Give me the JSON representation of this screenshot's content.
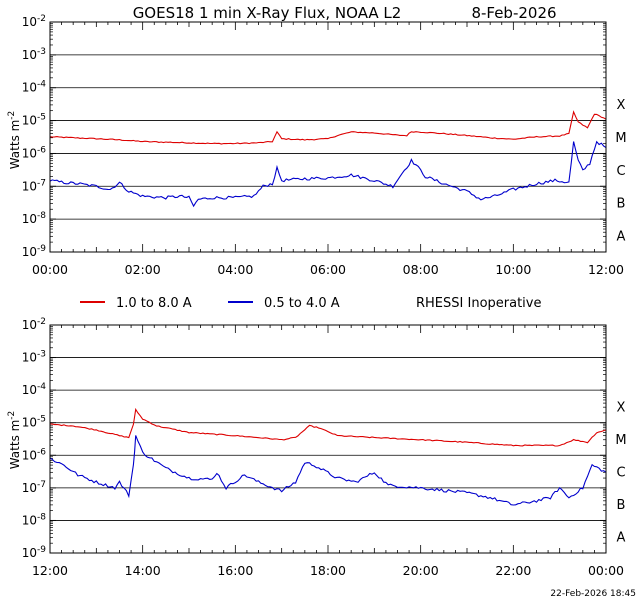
{
  "title": {
    "left": "GOES18 1 min X-Ray Flux, NOAA L2",
    "date": "8-Feb-2026"
  },
  "ylabel": "Watts m",
  "ylabel_exp": "-2",
  "flare_classes": [
    "X",
    "M",
    "C",
    "B",
    "A"
  ],
  "legend": {
    "long": "1.0 to 8.0 A",
    "short": "0.5 to 4.0 A",
    "note": "RHESSI Inoperative"
  },
  "footer": {
    "timestamp": "22-Feb-2026 18:45"
  },
  "colors": {
    "long": "#dd0000",
    "short": "#0000cc",
    "grid": "#000000",
    "background": "#ffffff"
  },
  "chart_data": [
    {
      "type": "line",
      "panel": "top",
      "xlabel": "",
      "ylabel": "Watts m-2",
      "yscale": "log",
      "ylim": [
        1e-09,
        0.01
      ],
      "xlim_hours": [
        0,
        12
      ],
      "x_tick_labels": [
        "00:00",
        "02:00",
        "04:00",
        "06:00",
        "08:00",
        "10:00",
        "12:00"
      ],
      "y_tick_exponents": [
        -9,
        -8,
        -7,
        -6,
        -5,
        -4,
        -3,
        -2
      ],
      "series": [
        {
          "name": "1.0 to 8.0 A",
          "color": "#dd0000",
          "points": [
            [
              0,
              3.2e-06
            ],
            [
              0.5,
              3e-06
            ],
            [
              1,
              2.8e-06
            ],
            [
              1.5,
              2.6e-06
            ],
            [
              2,
              2.3e-06
            ],
            [
              2.5,
              2.2e-06
            ],
            [
              3,
              2.1e-06
            ],
            [
              3.5,
              2e-06
            ],
            [
              4,
              2e-06
            ],
            [
              4.5,
              2.1e-06
            ],
            [
              4.8,
              2.3e-06
            ],
            [
              4.9,
              4.5e-06
            ],
            [
              5.0,
              2.8e-06
            ],
            [
              5.5,
              2.6e-06
            ],
            [
              6,
              2.8e-06
            ],
            [
              6.2,
              3.5e-06
            ],
            [
              6.5,
              4.5e-06
            ],
            [
              7,
              4.2e-06
            ],
            [
              7.5,
              3.6e-06
            ],
            [
              7.7,
              3.5e-06
            ],
            [
              7.8,
              4.6e-06
            ],
            [
              8,
              4.5e-06
            ],
            [
              8.5,
              4e-06
            ],
            [
              9,
              3.5e-06
            ],
            [
              9.5,
              3e-06
            ],
            [
              10,
              2.7e-06
            ],
            [
              10.5,
              3.2e-06
            ],
            [
              11,
              3.4e-06
            ],
            [
              11.2,
              4e-06
            ],
            [
              11.3,
              1.8e-05
            ],
            [
              11.4,
              9e-06
            ],
            [
              11.6,
              6e-06
            ],
            [
              11.75,
              1.6e-05
            ],
            [
              11.9,
              1.3e-05
            ],
            [
              12,
              1.1e-05
            ]
          ]
        },
        {
          "name": "0.5 to 4.0 A",
          "color": "#0000cc",
          "points": [
            [
              0,
              1.5e-07
            ],
            [
              0.3,
              1.3e-07
            ],
            [
              0.6,
              1.2e-07
            ],
            [
              1,
              1e-07
            ],
            [
              1.3,
              8e-08
            ],
            [
              1.5,
              1.3e-07
            ],
            [
              1.7,
              7e-08
            ],
            [
              2,
              5e-08
            ],
            [
              2.5,
              4.5e-08
            ],
            [
              2.8,
              5e-08
            ],
            [
              3.0,
              4.5e-08
            ],
            [
              3.1,
              2.5e-08
            ],
            [
              3.2,
              4e-08
            ],
            [
              3.5,
              4.5e-08
            ],
            [
              4,
              4.5e-08
            ],
            [
              4.4,
              5e-08
            ],
            [
              4.6,
              1e-07
            ],
            [
              4.8,
              1.2e-07
            ],
            [
              4.9,
              3.5e-07
            ],
            [
              5.0,
              1.5e-07
            ],
            [
              5.5,
              1.7e-07
            ],
            [
              6,
              1.8e-07
            ],
            [
              6.5,
              2.2e-07
            ],
            [
              7,
              1.5e-07
            ],
            [
              7.4,
              1e-07
            ],
            [
              7.6,
              2.5e-07
            ],
            [
              7.8,
              6e-07
            ],
            [
              7.9,
              4.5e-07
            ],
            [
              8.1,
              2e-07
            ],
            [
              8.5,
              1.2e-07
            ],
            [
              9,
              7e-08
            ],
            [
              9.3,
              4e-08
            ],
            [
              9.6,
              5e-08
            ],
            [
              10,
              8e-08
            ],
            [
              10.5,
              1.2e-07
            ],
            [
              10.9,
              1.5e-07
            ],
            [
              11.2,
              1.3e-07
            ],
            [
              11.3,
              2.2e-06
            ],
            [
              11.4,
              6e-07
            ],
            [
              11.5,
              3e-07
            ],
            [
              11.65,
              5e-07
            ],
            [
              11.8,
              2.3e-06
            ],
            [
              12,
              1.5e-06
            ]
          ]
        }
      ]
    },
    {
      "type": "line",
      "panel": "bottom",
      "xlabel": "",
      "ylabel": "Watts m-2",
      "yscale": "log",
      "ylim": [
        1e-09,
        0.01
      ],
      "xlim_hours": [
        12,
        24
      ],
      "x_tick_labels": [
        "12:00",
        "14:00",
        "16:00",
        "18:00",
        "20:00",
        "22:00",
        "00:00"
      ],
      "y_tick_exponents": [
        -9,
        -8,
        -7,
        -6,
        -5,
        -4,
        -3,
        -2
      ],
      "series": [
        {
          "name": "1.0 to 8.0 A",
          "color": "#dd0000",
          "points": [
            [
              12,
              9e-06
            ],
            [
              12.5,
              8e-06
            ],
            [
              13,
              6e-06
            ],
            [
              13.5,
              4e-06
            ],
            [
              13.7,
              3.5e-06
            ],
            [
              13.8,
              9e-06
            ],
            [
              13.85,
              2.5e-05
            ],
            [
              14,
              1.3e-05
            ],
            [
              14.3,
              8e-06
            ],
            [
              15,
              5e-06
            ],
            [
              16,
              4e-06
            ],
            [
              16.5,
              3.5e-06
            ],
            [
              17,
              3e-06
            ],
            [
              17.3,
              3.5e-06
            ],
            [
              17.6,
              8e-06
            ],
            [
              17.8,
              7e-06
            ],
            [
              18.2,
              4e-06
            ],
            [
              19,
              3.5e-06
            ],
            [
              20,
              3e-06
            ],
            [
              21,
              2.5e-06
            ],
            [
              22,
              2e-06
            ],
            [
              23,
              2e-06
            ],
            [
              23.3,
              3e-06
            ],
            [
              23.6,
              2.5e-06
            ],
            [
              23.8,
              5e-06
            ],
            [
              24,
              6e-06
            ]
          ]
        },
        {
          "name": "0.5 to 4.0 A",
          "color": "#0000cc",
          "points": [
            [
              12,
              8e-07
            ],
            [
              12.3,
              5e-07
            ],
            [
              12.6,
              2.5e-07
            ],
            [
              13,
              1.5e-07
            ],
            [
              13.4,
              1e-07
            ],
            [
              13.5,
              1.5e-07
            ],
            [
              13.7,
              6e-08
            ],
            [
              13.8,
              5e-07
            ],
            [
              13.85,
              4e-06
            ],
            [
              14,
              1.2e-06
            ],
            [
              14.5,
              4e-07
            ],
            [
              15,
              2e-07
            ],
            [
              15.5,
              1.8e-07
            ],
            [
              15.6,
              3e-07
            ],
            [
              15.8,
              1e-07
            ],
            [
              16.2,
              2.5e-07
            ],
            [
              16.5,
              1.5e-07
            ],
            [
              17,
              8e-08
            ],
            [
              17.3,
              1.5e-07
            ],
            [
              17.5,
              6e-07
            ],
            [
              17.7,
              5e-07
            ],
            [
              18.2,
              2e-07
            ],
            [
              18.6,
              1.5e-07
            ],
            [
              19,
              3e-07
            ],
            [
              19.3,
              1.2e-07
            ],
            [
              20,
              1e-07
            ],
            [
              21,
              7e-08
            ],
            [
              21.5,
              5e-08
            ],
            [
              22,
              3e-08
            ],
            [
              22.5,
              4e-08
            ],
            [
              22.8,
              5e-08
            ],
            [
              23,
              1e-07
            ],
            [
              23.2,
              5e-08
            ],
            [
              23.5,
              1e-07
            ],
            [
              23.7,
              5e-07
            ],
            [
              24,
              3e-07
            ]
          ]
        }
      ]
    }
  ]
}
